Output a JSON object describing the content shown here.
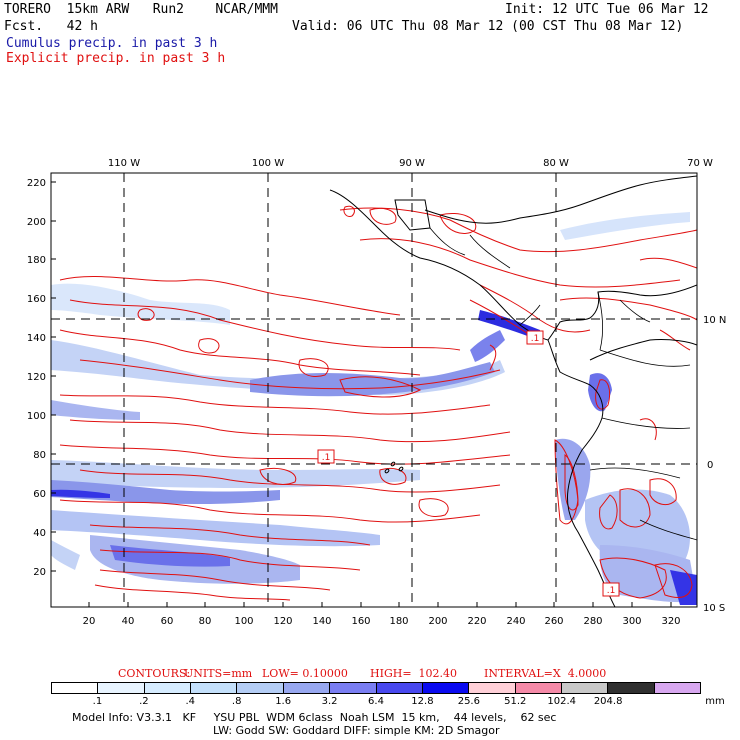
{
  "header": {
    "model_title": "TORERO  15km ARW   Run2    NCAR/MMM",
    "init": "Init: 12 UTC Tue 06 Mar 12",
    "fcst": "Fcst.   42 h",
    "valid": "Valid: 06 UTC Thu 08 Mar 12 (00 CST Thu 08 Mar 12)",
    "cumulus_label": "Cumulus precip. in past 3 h",
    "explicit_label": "Explicit precip. in past 3 h",
    "cumulus_color": "#1a1aa8",
    "explicit_color": "#e01010"
  },
  "map": {
    "top_lon_labels": [
      "110 W",
      "100 W",
      "90 W",
      "80 W",
      "70 W"
    ],
    "right_lat_labels": [
      "10 N",
      "0",
      "10 S"
    ],
    "y_ticks": [
      "220",
      "200",
      "180",
      "160",
      "140",
      "120",
      "100",
      "80",
      "60",
      "40",
      "20"
    ],
    "x_ticks": [
      "20",
      "40",
      "60",
      "80",
      "100",
      "120",
      "140",
      "160",
      "180",
      "200",
      "220",
      "240",
      "260",
      "280",
      "300",
      "320"
    ],
    "contour_box_labels": [
      ".1",
      ".1",
      ".1"
    ]
  },
  "contours_info": {
    "label": "CONTOURS:",
    "units": "UNITS=mm",
    "low": "LOW= 0.10000",
    "high": "HIGH=  102.40",
    "interval": "INTERVAL=X  4.0000"
  },
  "colorbar": {
    "labels": [
      ".1",
      ".2",
      ".4",
      ".8",
      "1.6",
      "3.2",
      "6.4",
      "12.8",
      "25.6",
      "51.2",
      "102.4",
      "204.8"
    ],
    "unit": "mm",
    "colors": [
      "#ffffff",
      "#e8f4ff",
      "#d6ecff",
      "#c4e0fb",
      "#b4cdf5",
      "#98a8f0",
      "#7a7ef2",
      "#4848ee",
      "#0a0af0",
      "#ffd0d8",
      "#f58aa8",
      "#c8c8c8",
      "#303030",
      "#d8a8f0"
    ]
  },
  "footer": {
    "line1": "Model Info: V3.3.1   KF     YSU PBL  WDM 6class  Noah LSM  15 km,    44 levels,    62 sec",
    "line2": "LW: Godd SW: Goddard DIFF: simple KM: 2D Smagor"
  }
}
